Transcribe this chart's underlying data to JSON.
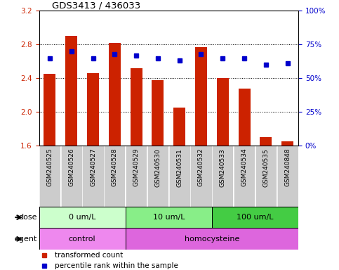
{
  "title": "GDS3413 / 436033",
  "samples": [
    "GSM240525",
    "GSM240526",
    "GSM240527",
    "GSM240528",
    "GSM240529",
    "GSM240530",
    "GSM240531",
    "GSM240532",
    "GSM240533",
    "GSM240534",
    "GSM240535",
    "GSM240848"
  ],
  "bar_values": [
    2.45,
    2.9,
    2.46,
    2.82,
    2.52,
    2.38,
    2.05,
    2.77,
    2.4,
    2.28,
    1.7,
    1.65
  ],
  "dot_values": [
    65,
    70,
    65,
    68,
    67,
    65,
    63,
    68,
    65,
    65,
    60,
    61
  ],
  "bar_bottom": 1.6,
  "ylim_left": [
    1.6,
    3.2
  ],
  "ylim_right": [
    0,
    100
  ],
  "yticks_left": [
    1.6,
    2.0,
    2.4,
    2.8,
    3.2
  ],
  "yticks_right": [
    0,
    25,
    50,
    75,
    100
  ],
  "ytick_labels_right": [
    "0%",
    "25%",
    "50%",
    "75%",
    "100%"
  ],
  "bar_color": "#cc2200",
  "dot_color": "#0000cc",
  "dose_groups": [
    {
      "label": "0 um/L",
      "start": 0,
      "end": 4,
      "color": "#ccffcc"
    },
    {
      "label": "10 um/L",
      "start": 4,
      "end": 8,
      "color": "#88ee88"
    },
    {
      "label": "100 um/L",
      "start": 8,
      "end": 12,
      "color": "#44cc44"
    }
  ],
  "agent_groups": [
    {
      "label": "control",
      "start": 0,
      "end": 4,
      "color": "#ee88ee"
    },
    {
      "label": "homocysteine",
      "start": 4,
      "end": 12,
      "color": "#dd66dd"
    }
  ],
  "legend_bar_label": "transformed count",
  "legend_dot_label": "percentile rank within the sample",
  "dose_label": "dose",
  "agent_label": "agent",
  "tick_label_color_left": "#cc2200",
  "tick_label_color_right": "#0000cc",
  "background_color": "#ffffff",
  "xtick_bg": "#cccccc"
}
